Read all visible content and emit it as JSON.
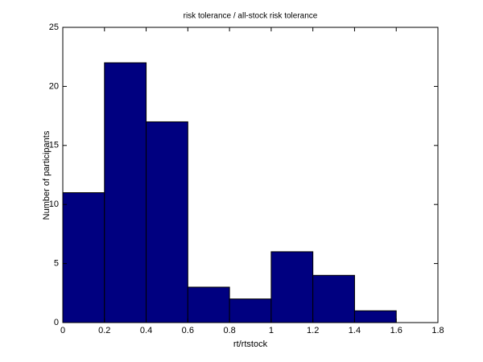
{
  "chart_data": {
    "type": "histogram",
    "title": "risk tolerance / all-stock risk tolerance",
    "xlabel": "rt/rtstock",
    "ylabel": "Number of participants",
    "bins": [
      0,
      0.2,
      0.4,
      0.6,
      0.8,
      1,
      1.2,
      1.4,
      1.6
    ],
    "counts": [
      11,
      22,
      17,
      3,
      2,
      6,
      4,
      1
    ],
    "color": "#000080",
    "xlim": [
      0,
      1.8
    ],
    "xticks": [
      0,
      0.2,
      0.4,
      0.6,
      0.8,
      1,
      1.2,
      1.4,
      1.6,
      1.8
    ],
    "ylim": [
      0,
      25
    ],
    "yticks": [
      0,
      5,
      10,
      15,
      20,
      25
    ]
  }
}
